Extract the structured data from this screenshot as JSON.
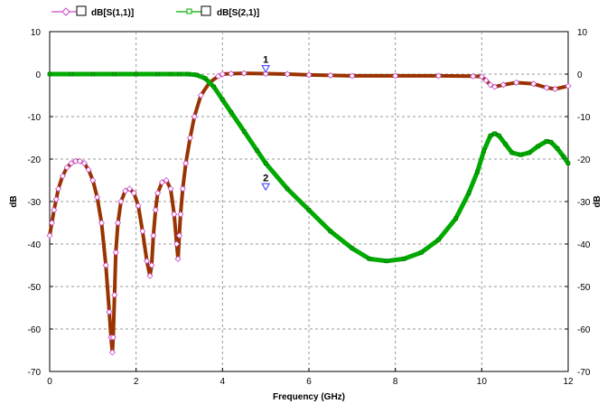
{
  "chart_data": {
    "type": "line",
    "xlabel": "Frequency (GHz)",
    "ylabel": "dB",
    "xlim": [
      0,
      12
    ],
    "ylim": [
      -70,
      10
    ],
    "x_ticks": [
      "0",
      "2",
      "4",
      "6",
      "8",
      "10",
      "12"
    ],
    "y_ticks": [
      "10",
      "0",
      "-10",
      "-20",
      "-30",
      "-40",
      "-50",
      "-60",
      "-70"
    ],
    "grid": true,
    "legend_position": "top-left",
    "series": [
      {
        "name": "dB[S(1,1)]",
        "color": "#993300",
        "marker_color": "#cc44cc",
        "x": [
          0,
          0.05,
          0.1,
          0.15,
          0.2,
          0.3,
          0.4,
          0.5,
          0.6,
          0.7,
          0.8,
          0.9,
          1.0,
          1.1,
          1.2,
          1.3,
          1.38,
          1.42,
          1.45,
          1.47,
          1.5,
          1.53,
          1.58,
          1.65,
          1.75,
          1.85,
          1.95,
          2.05,
          2.15,
          2.25,
          2.32,
          2.36,
          2.4,
          2.45,
          2.5,
          2.6,
          2.7,
          2.8,
          2.88,
          2.94,
          2.97,
          3.0,
          3.03,
          3.08,
          3.15,
          3.25,
          3.35,
          3.5,
          3.7,
          3.9,
          4.0,
          4.2,
          4.5,
          5.0,
          5.5,
          6.0,
          6.5,
          7.0,
          8.0,
          9.0,
          9.8,
          10.0,
          10.1,
          10.2,
          10.3,
          10.5,
          10.8,
          11.2,
          11.5,
          11.7,
          12.0
        ],
        "y": [
          -38,
          -35,
          -32,
          -29.5,
          -27,
          -24,
          -22,
          -21,
          -20.5,
          -20.5,
          -21,
          -22.5,
          -25,
          -29,
          -35,
          -45,
          -56,
          -62,
          -65.5,
          -62,
          -52,
          -42,
          -35,
          -30,
          -27.5,
          -27,
          -28,
          -31,
          -37,
          -44,
          -47.5,
          -45,
          -38,
          -32,
          -28,
          -25.5,
          -25,
          -27,
          -33,
          -40,
          -43.5,
          -38,
          -33,
          -27,
          -21,
          -15,
          -10,
          -5,
          -2,
          -0.5,
          0,
          0.1,
          0.2,
          0.1,
          0,
          -0.2,
          -0.3,
          -0.4,
          -0.4,
          -0.4,
          -0.5,
          -0.6,
          -1.5,
          -2.5,
          -3,
          -2.5,
          -2,
          -2.3,
          -3.2,
          -3.5,
          -2.8
        ]
      },
      {
        "name": "dB[S(2,1)]",
        "color": "#00aa00",
        "marker_color": "#00aa00",
        "x": [
          0,
          0.5,
          1.0,
          1.5,
          2.0,
          2.5,
          2.8,
          3.0,
          3.2,
          3.4,
          3.6,
          3.8,
          4.0,
          4.2,
          4.5,
          4.8,
          5.0,
          5.5,
          6.0,
          6.5,
          7.0,
          7.4,
          7.8,
          8.2,
          8.6,
          9.0,
          9.4,
          9.7,
          9.9,
          10.05,
          10.2,
          10.3,
          10.4,
          10.55,
          10.7,
          10.9,
          11.1,
          11.3,
          11.5,
          11.6,
          11.75,
          11.9,
          12.0
        ],
        "y": [
          0,
          0,
          0,
          0,
          0,
          0,
          0,
          0,
          0,
          -0.2,
          -1,
          -3,
          -6,
          -9,
          -13.5,
          -18,
          -21,
          -27,
          -32,
          -37,
          -41,
          -43.5,
          -44,
          -43.5,
          -42,
          -39,
          -34,
          -28,
          -23,
          -18,
          -14.5,
          -14,
          -14.5,
          -16.5,
          -18.5,
          -19,
          -18.5,
          -17,
          -15.8,
          -16,
          -17.5,
          -19.5,
          -21
        ]
      }
    ],
    "markers": [
      {
        "label": "1",
        "x": 5.0,
        "y": 0.3
      },
      {
        "label": "2",
        "x": 5.0,
        "y": -27.5
      }
    ]
  }
}
